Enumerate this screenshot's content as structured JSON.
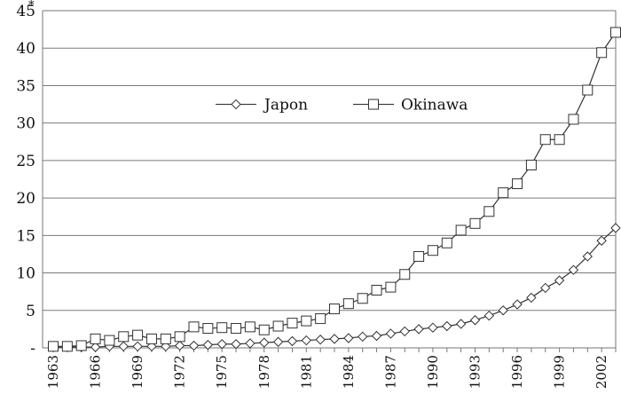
{
  "chart_data": {
    "type": "line",
    "title": "",
    "xlabel": "",
    "ylabel": "",
    "y_unit_marker": "*",
    "ylim": [
      0,
      45
    ],
    "y_ticks": [
      0,
      5,
      10,
      15,
      20,
      25,
      30,
      35,
      40,
      45
    ],
    "y_tick_labels": [
      "-",
      "5",
      "10",
      "15",
      "20",
      "25",
      "30",
      "35",
      "40",
      "45"
    ],
    "x_tick_labels": [
      "1963",
      "1966",
      "1969",
      "1972",
      "1975",
      "1978",
      "1981",
      "1984",
      "1987",
      "1990",
      "1993",
      "1996",
      "1999",
      "2002"
    ],
    "grid": true,
    "legend_position": "upper-center",
    "x": [
      1963,
      1964,
      1965,
      1966,
      1967,
      1968,
      1969,
      1970,
      1971,
      1972,
      1973,
      1974,
      1975,
      1976,
      1977,
      1978,
      1979,
      1980,
      1981,
      1982,
      1983,
      1984,
      1985,
      1986,
      1987,
      1988,
      1989,
      1990,
      1991,
      1992,
      1993,
      1994,
      1995,
      1996,
      1997,
      1998,
      1999,
      2000,
      2001,
      2002,
      2003
    ],
    "series": [
      {
        "name": "Japon",
        "marker": "diamond",
        "color": "#333333",
        "values": [
          0.1,
          0.1,
          0.1,
          0.1,
          0.2,
          0.2,
          0.2,
          0.2,
          0.2,
          0.3,
          0.3,
          0.4,
          0.5,
          0.5,
          0.6,
          0.7,
          0.8,
          0.9,
          1.0,
          1.1,
          1.2,
          1.3,
          1.5,
          1.6,
          1.9,
          2.2,
          2.5,
          2.7,
          2.9,
          3.2,
          3.7,
          4.3,
          5.0,
          5.8,
          6.7,
          8.0,
          9.0,
          10.4,
          12.2,
          14.3,
          16.0
        ]
      },
      {
        "name": "Okinawa",
        "marker": "square",
        "color": "#333333",
        "values": [
          0.2,
          0.2,
          0.3,
          1.2,
          1.0,
          1.5,
          1.7,
          1.2,
          1.2,
          1.5,
          2.8,
          2.6,
          2.7,
          2.6,
          2.8,
          2.4,
          2.9,
          3.3,
          3.6,
          3.9,
          5.2,
          5.9,
          6.6,
          7.7,
          8.1,
          9.8,
          12.2,
          13.0,
          14.0,
          15.7,
          16.6,
          18.2,
          20.7,
          21.9,
          24.4,
          27.8,
          27.8,
          30.5,
          34.4,
          39.4,
          42.1
        ]
      }
    ]
  }
}
